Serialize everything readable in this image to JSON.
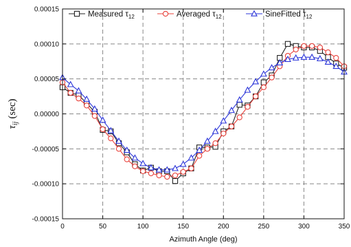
{
  "chart_data": {
    "type": "line",
    "xlabel": "Azimuth Angle (deg)",
    "ylabel": "τij (sec)",
    "ylabel_symbol": "τ",
    "ylabel_sub": "ij",
    "ylabel_unit": "(sec)",
    "xlim": [
      0,
      350
    ],
    "ylim": [
      -0.00015,
      0.00015
    ],
    "x_ticks": [
      0,
      50,
      100,
      150,
      200,
      250,
      300,
      350
    ],
    "x_tick_labels": [
      "0",
      "50",
      "100",
      "150",
      "200",
      "250",
      "300",
      "350"
    ],
    "y_ticks": [
      -0.00015,
      -0.0001,
      -5e-05,
      0,
      5e-05,
      0.0001,
      0.00015
    ],
    "y_tick_labels": [
      "-0.00015",
      "-0.00010",
      "-0.00005",
      "0.00000",
      "0.00005",
      "0.00010",
      "0.00015"
    ],
    "grid": true,
    "legend_position": "top",
    "series": [
      {
        "name": "Measured τ12",
        "label_main": "Measured τ",
        "label_sub": "12",
        "color": "#222222",
        "marker": "square",
        "x": [
          0,
          10,
          20,
          30,
          40,
          50,
          60,
          70,
          80,
          90,
          100,
          110,
          120,
          130,
          140,
          150,
          160,
          170,
          180,
          190,
          200,
          210,
          220,
          230,
          240,
          250,
          260,
          270,
          280,
          290,
          300,
          310,
          320,
          330,
          340,
          350
        ],
        "y": [
          3.8e-05,
          3e-05,
          2.7e-05,
          1.5e-05,
          3e-06,
          -2.3e-05,
          -2.5e-05,
          -4.2e-05,
          -5.5e-05,
          -7.2e-05,
          -8.1e-05,
          -7.7e-05,
          -8.2e-05,
          -8.2e-05,
          -9.6e-05,
          -8.5e-05,
          -7.8e-05,
          -4.8e-05,
          -4.8e-05,
          -4.7e-05,
          -2.5e-05,
          -1.8e-05,
          1.3e-05,
          1.2e-05,
          2.5e-05,
          4.5e-05,
          5.5e-05,
          8e-05,
          0.0001,
          9.7e-05,
          9.5e-05,
          9.5e-05,
          9e-05,
          8.1e-05,
          7.2e-05,
          6.6e-05
        ]
      },
      {
        "name": "Averaged τ12",
        "label_main": "Averaged τ",
        "label_sub": "12",
        "color": "#e8403a",
        "marker": "circle",
        "x": [
          0,
          10,
          20,
          30,
          40,
          50,
          60,
          70,
          80,
          90,
          100,
          110,
          120,
          130,
          140,
          150,
          160,
          170,
          180,
          190,
          200,
          210,
          220,
          230,
          240,
          250,
          260,
          270,
          280,
          290,
          300,
          310,
          320,
          330,
          340,
          350
        ],
        "y": [
          4.5e-05,
          3e-05,
          2.2e-05,
          1.2e-05,
          -3e-06,
          -2.2e-05,
          -3.5e-05,
          -5e-05,
          -6.5e-05,
          -7.5e-05,
          -8.2e-05,
          -8.5e-05,
          -8.8e-05,
          -9e-05,
          -8.8e-05,
          -8.3e-05,
          -7.8e-05,
          -6e-05,
          -5e-05,
          -4.2e-05,
          -2.8e-05,
          -1.8e-05,
          -5e-06,
          1e-05,
          2.5e-05,
          3.8e-05,
          5.2e-05,
          6.8e-05,
          8.3e-05,
          9.2e-05,
          9.7e-05,
          9.7e-05,
          9.5e-05,
          8.8e-05,
          8e-05,
          6.8e-05
        ]
      },
      {
        "name": "SineFitted τ12",
        "label_main": "SineFitted τ",
        "label_sub": "12",
        "color": "#2b35d9",
        "marker": "triangle",
        "x": [
          0,
          10,
          20,
          30,
          40,
          50,
          60,
          70,
          80,
          90,
          100,
          110,
          120,
          130,
          140,
          150,
          160,
          170,
          180,
          190,
          200,
          210,
          220,
          230,
          240,
          250,
          260,
          270,
          280,
          290,
          300,
          310,
          320,
          330,
          340,
          350
        ],
        "y": [
          5.2e-05,
          4.2e-05,
          3.3e-05,
          2.1e-05,
          7e-06,
          -9e-06,
          -2.4e-05,
          -3.9e-05,
          -5.2e-05,
          -6.3e-05,
          -7.1e-05,
          -7.7e-05,
          -8e-05,
          -8e-05,
          -7.8e-05,
          -7.2e-05,
          -6.3e-05,
          -5.2e-05,
          -3.9e-05,
          -2.5e-05,
          -1e-05,
          5e-06,
          2e-05,
          3.4e-05,
          4.6e-05,
          5.7e-05,
          6.6e-05,
          7.3e-05,
          7.8e-05,
          8e-05,
          8.1e-05,
          8.1e-05,
          7.9e-05,
          7.4e-05,
          6.8e-05,
          6e-05
        ]
      }
    ]
  }
}
